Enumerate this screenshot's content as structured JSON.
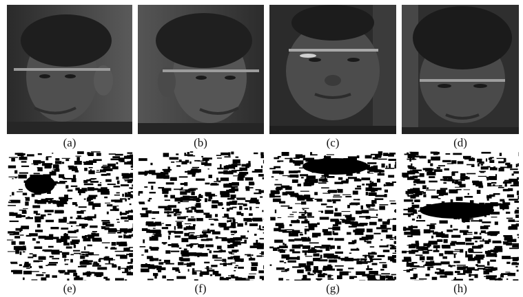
{
  "figure": {
    "top_row": [
      {
        "label": "(a)",
        "content": "face photo, head turned to viewer's left"
      },
      {
        "label": "(b)",
        "content": "face photo, head turned to viewer's right"
      },
      {
        "label": "(c)",
        "content": "face photo, head tilted upward"
      },
      {
        "label": "(d)",
        "content": "face photo, head tilted downward"
      }
    ],
    "bottom_row": [
      {
        "label": "(e)",
        "content": "binary texture pattern of (a)"
      },
      {
        "label": "(f)",
        "content": "binary texture pattern of (b)"
      },
      {
        "label": "(g)",
        "content": "binary texture pattern of (c)"
      },
      {
        "label": "(h)",
        "content": "binary texture pattern of (d)"
      }
    ]
  }
}
